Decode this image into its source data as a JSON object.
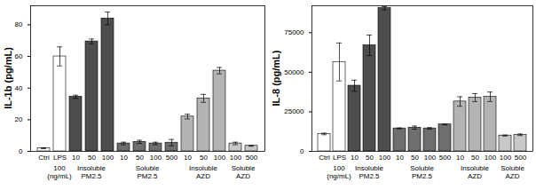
{
  "chart_data": [
    {
      "type": "bar",
      "y_label": "IL-1b (pg/mL)",
      "categories": [
        "Ctrl",
        "LPS",
        "10",
        "50",
        "100",
        "10",
        "50",
        "100",
        "500",
        "10",
        "50",
        "100",
        "100",
        "500"
      ],
      "groups": [
        null,
        "100 (ng/mL)",
        "Insoluble PM2.5",
        "Insoluble PM2.5",
        "Insoluble PM2.5",
        "Soluble PM2.5",
        "Soluble PM2.5",
        "Soluble PM2.5",
        "Soluble PM2.5",
        "Insoluble AZD",
        "Insoluble AZD",
        "Insoluble AZD",
        "Soluble AZD",
        "Soluble AZD"
      ],
      "values": [
        2,
        60,
        34.5,
        69.5,
        84,
        5,
        6,
        5,
        5.5,
        22,
        33.5,
        51,
        5,
        3.5
      ],
      "errors": [
        0.3,
        6,
        1,
        1.5,
        4,
        0.8,
        1,
        0.8,
        2,
        1.5,
        2.5,
        2,
        0.8,
        0.3
      ],
      "colors": [
        "#ffffff",
        "#ffffff",
        "#4d4d4d",
        "#4d4d4d",
        "#4d4d4d",
        "#6e6e6e",
        "#6e6e6e",
        "#6e6e6e",
        "#6e6e6e",
        "#b4b4b4",
        "#b4b4b4",
        "#b4b4b4",
        "#c8c8c8",
        "#c8c8c8"
      ],
      "ylim": [
        0,
        92
      ],
      "yticks": [
        0,
        20,
        40,
        60,
        80
      ]
    },
    {
      "type": "bar",
      "y_label": "IL-8 (pg/mL)",
      "categories": [
        "Ctrl",
        "LPS",
        "10",
        "50",
        "100",
        "10",
        "50",
        "100",
        "500",
        "10",
        "50",
        "100",
        "100",
        "500"
      ],
      "groups": [
        null,
        "100 (ng/mL)",
        "Insoluble PM2.5",
        "Insoluble PM2.5",
        "Insoluble PM2.5",
        "Soluble PM2.5",
        "Soluble PM2.5",
        "Soluble PM2.5",
        "Soluble PM2.5",
        "Insoluble AZD",
        "Insoluble AZD",
        "Insoluble AZD",
        "Soluble AZD",
        "Soluble AZD"
      ],
      "values": [
        11000,
        56500,
        41500,
        67000,
        90500,
        14500,
        15000,
        14500,
        17000,
        31500,
        34000,
        34500,
        10000,
        10500
      ],
      "errors": [
        500,
        12000,
        3500,
        6500,
        1000,
        300,
        1000,
        500,
        300,
        3000,
        2500,
        3000,
        300,
        500
      ],
      "colors": [
        "#ffffff",
        "#ffffff",
        "#4d4d4d",
        "#4d4d4d",
        "#4d4d4d",
        "#6e6e6e",
        "#6e6e6e",
        "#6e6e6e",
        "#6e6e6e",
        "#b4b4b4",
        "#b4b4b4",
        "#b4b4b4",
        "#c8c8c8",
        "#c8c8c8"
      ],
      "ylim": [
        0,
        92000
      ],
      "yticks": [
        0,
        25000,
        50000,
        75000
      ]
    }
  ]
}
